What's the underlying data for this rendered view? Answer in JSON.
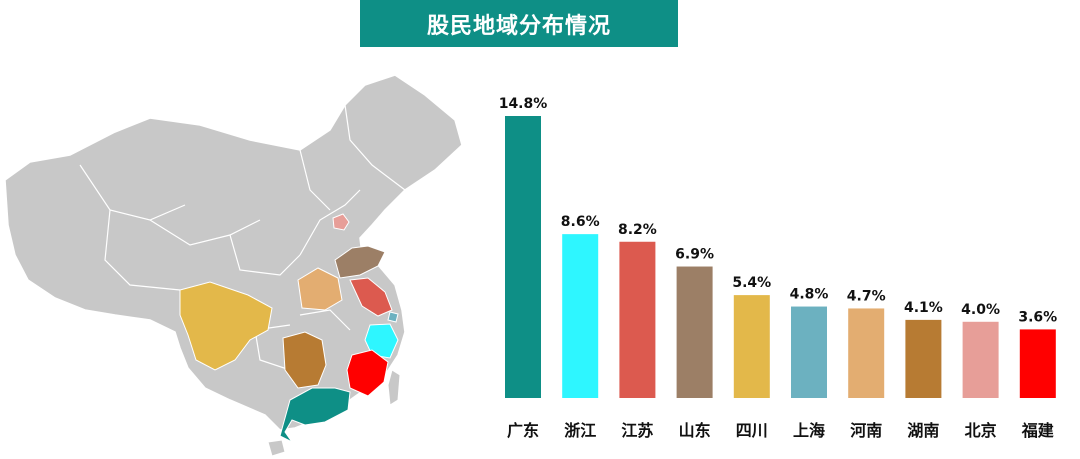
{
  "title": "股民地域分布情况",
  "colors": {
    "title_bg": "#0e8f86",
    "map_base": "#c8c8c8"
  },
  "chart_data": {
    "type": "bar",
    "title": "股民地域分布情况",
    "categories": [
      "广东",
      "浙江",
      "江苏",
      "山东",
      "四川",
      "上海",
      "河南",
      "湖南",
      "北京",
      "福建"
    ],
    "values": [
      14.8,
      8.6,
      8.2,
      6.9,
      5.4,
      4.8,
      4.7,
      4.1,
      4.0,
      3.6
    ],
    "labels": [
      "14.8%",
      "8.6%",
      "8.2%",
      "6.9%",
      "5.4%",
      "4.8%",
      "4.7%",
      "4.1%",
      "4.0%",
      "3.6%"
    ],
    "colors": [
      "#0e8f86",
      "#2ef6ff",
      "#dc5a4f",
      "#9c7f66",
      "#e3b84a",
      "#6cb1c0",
      "#e3ad71",
      "#b77b33",
      "#e79e98",
      "#ff0000"
    ],
    "unit": "%",
    "ylim": [
      0,
      14.8
    ],
    "grid": false,
    "legend": "none"
  }
}
